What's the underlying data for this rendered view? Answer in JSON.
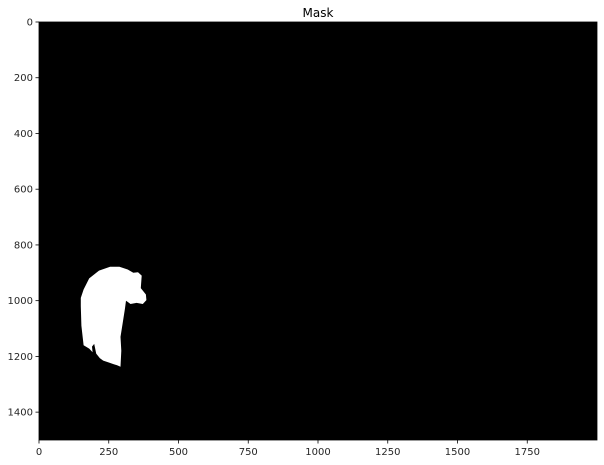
{
  "chart_data": {
    "type": "image",
    "title": "Mask",
    "xlabel": "",
    "ylabel": "",
    "xlim": [
      0,
      2000
    ],
    "ylim": [
      1500,
      0
    ],
    "grid": false,
    "xticks": [
      0,
      250,
      500,
      750,
      1000,
      1250,
      1500,
      1750
    ],
    "xtick_labels": [
      "0",
      "250",
      "500",
      "750",
      "1000",
      "1250",
      "1500",
      "1750"
    ],
    "yticks": [
      0,
      200,
      400,
      600,
      800,
      1000,
      1200,
      1400
    ],
    "ytick_labels": [
      "0",
      "200",
      "400",
      "600",
      "800",
      "1000",
      "1200",
      "1400"
    ],
    "background_color": "#000000",
    "mask_color": "#ffffff",
    "mask_region": {
      "name": "mask-blob",
      "outline": [
        [
          160,
          960
        ],
        [
          180,
          920
        ],
        [
          215,
          892
        ],
        [
          255,
          878
        ],
        [
          288,
          878
        ],
        [
          318,
          888
        ],
        [
          338,
          900
        ],
        [
          355,
          898
        ],
        [
          368,
          910
        ],
        [
          365,
          955
        ],
        [
          383,
          978
        ],
        [
          385,
          998
        ],
        [
          372,
          1012
        ],
        [
          350,
          1008
        ],
        [
          328,
          1012
        ],
        [
          312,
          1000
        ],
        [
          308,
          1030
        ],
        [
          300,
          1080
        ],
        [
          292,
          1130
        ],
        [
          295,
          1180
        ],
        [
          292,
          1237
        ],
        [
          280,
          1232
        ],
        [
          268,
          1228
        ],
        [
          250,
          1222
        ],
        [
          230,
          1215
        ],
        [
          218,
          1206
        ],
        [
          205,
          1190
        ],
        [
          198,
          1155
        ],
        [
          190,
          1165
        ],
        [
          192,
          1185
        ],
        [
          180,
          1172
        ],
        [
          160,
          1160
        ],
        [
          152,
          1090
        ],
        [
          150,
          1020
        ],
        [
          150,
          990
        ]
      ]
    }
  }
}
